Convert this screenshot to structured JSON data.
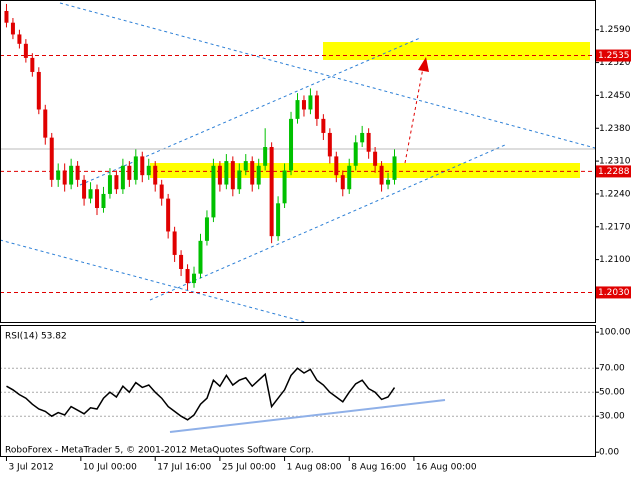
{
  "chart_data": [
    {
      "type": "candlestick",
      "up_color": "#00c000",
      "down_color": "#e00000",
      "xlim": [
        -1,
        91
      ],
      "ylim": [
        1.1967,
        1.2647
      ],
      "yticks": [
        {
          "value": 1.259,
          "label": "1.2590"
        },
        {
          "value": 1.252,
          "label": "1.2520"
        },
        {
          "value": 1.245,
          "label": "1.2450"
        },
        {
          "value": 1.238,
          "label": "1.2380"
        },
        {
          "value": 1.231,
          "label": "1.2310"
        },
        {
          "value": 1.224,
          "label": "1.2240"
        },
        {
          "value": 1.217,
          "label": "1.2170"
        },
        {
          "value": 1.21,
          "label": "1.2100"
        }
      ],
      "grid": false,
      "levels": [
        {
          "value": 1.2535,
          "label": "1.2535"
        },
        {
          "value": 1.2288,
          "label": "1.2288"
        },
        {
          "value": 1.203,
          "label": "1.2030"
        }
      ],
      "level_color": "#e00000",
      "open": [
        1.263,
        1.2605,
        1.258,
        1.256,
        1.253,
        1.25,
        1.242,
        1.236,
        1.227,
        1.229,
        1.226,
        1.23,
        1.227,
        1.223,
        1.225,
        1.221,
        1.224,
        1.228,
        1.225,
        1.23,
        1.227,
        1.232,
        1.228,
        1.23,
        1.226,
        1.223,
        1.216,
        1.211,
        1.208,
        1.205,
        1.207,
        1.214,
        1.219,
        1.23,
        1.226,
        1.231,
        1.225,
        1.229,
        1.231,
        1.226,
        1.23,
        1.234,
        1.215,
        1.222,
        1.229,
        1.24,
        1.244,
        1.242,
        1.245,
        1.24,
        1.237,
        1.232,
        1.228,
        1.225,
        1.23,
        1.235,
        1.237,
        1.233,
        1.23,
        1.226,
        1.227
      ],
      "high": [
        1.2645,
        1.2615,
        1.259,
        1.257,
        1.254,
        1.251,
        1.243,
        1.237,
        1.2305,
        1.2305,
        1.2315,
        1.231,
        1.228,
        1.2265,
        1.226,
        1.2255,
        1.2295,
        1.229,
        1.2315,
        1.231,
        1.2335,
        1.233,
        1.2315,
        1.231,
        1.227,
        1.224,
        1.217,
        1.212,
        1.209,
        1.2085,
        1.2155,
        1.2205,
        1.2315,
        1.231,
        1.2325,
        1.232,
        1.2305,
        1.2325,
        1.232,
        1.2315,
        1.238,
        1.235,
        1.2235,
        1.2305,
        1.2415,
        1.2455,
        1.245,
        1.2465,
        1.246,
        1.241,
        1.238,
        1.233,
        1.229,
        1.2315,
        1.2365,
        1.2385,
        1.238,
        1.234,
        1.231,
        1.2285,
        1.2335
      ],
      "low": [
        1.2595,
        1.257,
        1.255,
        1.252,
        1.249,
        1.241,
        1.2345,
        1.2255,
        1.2255,
        1.2245,
        1.225,
        1.2255,
        1.2215,
        1.222,
        1.2195,
        1.22,
        1.223,
        1.224,
        1.224,
        1.2255,
        1.226,
        1.2265,
        1.227,
        1.2245,
        1.2215,
        1.2145,
        1.2095,
        1.2065,
        1.2035,
        1.204,
        1.206,
        1.213,
        1.218,
        1.2245,
        1.225,
        1.2235,
        1.224,
        1.228,
        1.2245,
        1.225,
        1.229,
        1.2135,
        1.214,
        1.221,
        1.228,
        1.239,
        1.2405,
        1.241,
        1.2385,
        1.2355,
        1.2305,
        1.2265,
        1.2235,
        1.224,
        1.229,
        1.234,
        1.2315,
        1.2285,
        1.2245,
        1.225,
        1.226
      ],
      "close": [
        1.2605,
        1.258,
        1.256,
        1.253,
        1.25,
        1.242,
        1.236,
        1.227,
        1.229,
        1.226,
        1.23,
        1.227,
        1.223,
        1.225,
        1.221,
        1.224,
        1.228,
        1.225,
        1.23,
        1.227,
        1.232,
        1.228,
        1.23,
        1.226,
        1.223,
        1.216,
        1.211,
        1.208,
        1.205,
        1.207,
        1.214,
        1.219,
        1.23,
        1.226,
        1.231,
        1.225,
        1.229,
        1.231,
        1.226,
        1.23,
        1.234,
        1.215,
        1.222,
        1.229,
        1.24,
        1.244,
        1.242,
        1.245,
        1.24,
        1.237,
        1.232,
        1.228,
        1.225,
        1.23,
        1.235,
        1.237,
        1.233,
        1.23,
        1.226,
        1.227,
        1.232
      ]
    },
    {
      "type": "line",
      "title": "RSI(14) 53.82",
      "color": "#000000",
      "xlim": [
        -1,
        91
      ],
      "ylim": [
        -4,
        106
      ],
      "yticks": [
        {
          "value": 100,
          "label": "100.00"
        },
        {
          "value": 70,
          "label": "70.00"
        },
        {
          "value": 50,
          "label": "50.00"
        },
        {
          "value": 30,
          "label": "30.00"
        },
        {
          "value": 0,
          "label": "0.00"
        }
      ],
      "grid": true,
      "xticks": [
        {
          "value": 0,
          "label": "3 Jul 2012"
        },
        {
          "value": 11.5,
          "label": "10 Jul 00:00"
        },
        {
          "value": 23,
          "label": "17 Jul 16:00"
        },
        {
          "value": 33,
          "label": "25 Jul 00:00"
        },
        {
          "value": 43,
          "label": "1 Aug 08:00"
        },
        {
          "value": 53,
          "label": "8 Aug 16:00"
        },
        {
          "value": 63,
          "label": "16 Aug 00:00"
        }
      ],
      "values": [
        55,
        52,
        48,
        45,
        40,
        36,
        34,
        30,
        33,
        31,
        38,
        35,
        32,
        37,
        36,
        45,
        50,
        46,
        55,
        50,
        58,
        54,
        56,
        50,
        45,
        38,
        34,
        30,
        27,
        31,
        40,
        45,
        60,
        55,
        64,
        56,
        60,
        62,
        55,
        60,
        65,
        38,
        45,
        52,
        64,
        70,
        66,
        69,
        60,
        56,
        50,
        46,
        42,
        50,
        57,
        60,
        53,
        50,
        44,
        46,
        53.82
      ],
      "footer": "RoboForex - MetaTrader 5, © 2001-2012 MetaQuotes Software Corp."
    }
  ]
}
